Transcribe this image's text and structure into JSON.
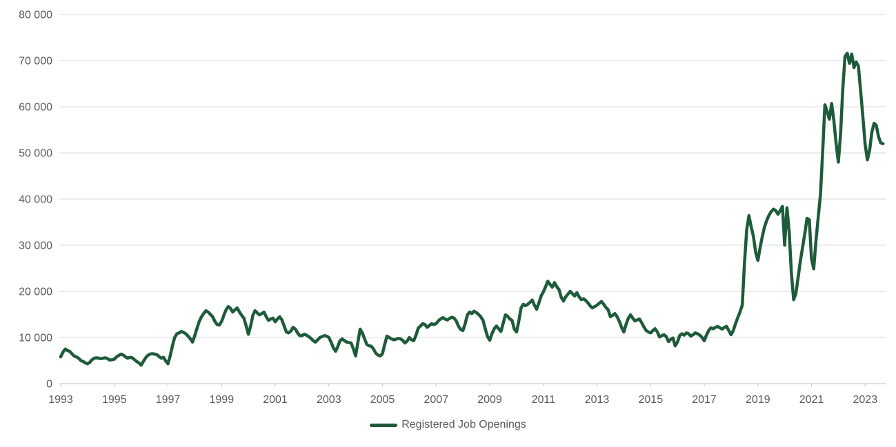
{
  "page": {
    "background": "#ffffff"
  },
  "chart_data": {
    "type": "line",
    "title": "",
    "xlabel": "",
    "ylabel": "",
    "grid": "horizontal-only",
    "legend_position": "bottom-center",
    "ylim": [
      0,
      80000
    ],
    "x_ticks": [
      1993,
      1995,
      1997,
      1999,
      2001,
      2003,
      2005,
      2007,
      2009,
      2011,
      2013,
      2015,
      2017,
      2019,
      2021,
      2023
    ],
    "y_ticks": [
      {
        "value": 0,
        "label": "0"
      },
      {
        "value": 10000,
        "label": "10 000"
      },
      {
        "value": 20000,
        "label": "20 000"
      },
      {
        "value": 30000,
        "label": "30 000"
      },
      {
        "value": 40000,
        "label": "40 000"
      },
      {
        "value": 50000,
        "label": "50 000"
      },
      {
        "value": 60000,
        "label": "60 000"
      },
      {
        "value": 70000,
        "label": "70 000"
      },
      {
        "value": 80000,
        "label": "80 000"
      }
    ],
    "colors": {
      "line": "#1e5b3a",
      "gridline": "#d9d9d9",
      "axis": "#c0c0c0",
      "text": "#595959"
    },
    "frequency": "monthly",
    "series": [
      {
        "name": "Registered Job Openings",
        "color": "#1e5b3a",
        "start": "1993-01",
        "end": "2023-09",
        "values": [
          5800,
          6800,
          7500,
          7200,
          7000,
          6500,
          6000,
          5800,
          5500,
          5000,
          4800,
          4500,
          4300,
          4600,
          5200,
          5500,
          5600,
          5500,
          5400,
          5500,
          5600,
          5400,
          5100,
          5200,
          5300,
          5800,
          6100,
          6400,
          6200,
          5800,
          5500,
          5700,
          5600,
          5200,
          4800,
          4500,
          4000,
          4800,
          5600,
          6100,
          6400,
          6500,
          6400,
          6300,
          5900,
          5500,
          5700,
          4900,
          4300,
          6000,
          8200,
          10000,
          10800,
          11000,
          11300,
          11100,
          10800,
          10300,
          9700,
          9000,
          10400,
          12000,
          13500,
          14500,
          15200,
          15800,
          15500,
          15000,
          14500,
          13500,
          12800,
          12700,
          13500,
          14800,
          16000,
          16700,
          16300,
          15500,
          16000,
          16400,
          15500,
          14800,
          14200,
          12500,
          10700,
          12500,
          14800,
          15800,
          15300,
          14900,
          15200,
          15500,
          14500,
          13700,
          14000,
          14200,
          13400,
          14000,
          14500,
          13800,
          12500,
          11200,
          11000,
          11400,
          12200,
          11800,
          11000,
          10400,
          10400,
          10700,
          10500,
          10200,
          9800,
          9300,
          9000,
          9500,
          10000,
          10200,
          10400,
          10300,
          10000,
          9000,
          7800,
          7000,
          8000,
          9300,
          9700,
          9300,
          9000,
          8900,
          8800,
          7500,
          6000,
          9000,
          11800,
          11000,
          9700,
          8500,
          8200,
          8100,
          7500,
          6600,
          6200,
          6000,
          6500,
          8500,
          10300,
          10000,
          9700,
          9500,
          9600,
          9800,
          9700,
          9400,
          8800,
          9200,
          10000,
          9500,
          9300,
          10500,
          12000,
          12500,
          13000,
          12800,
          12200,
          12600,
          13000,
          12800,
          13000,
          13600,
          14000,
          14300,
          14000,
          13800,
          14100,
          14400,
          14200,
          13600,
          12500,
          11700,
          11500,
          13000,
          14900,
          15500,
          15200,
          15700,
          15400,
          15000,
          14500,
          13700,
          11900,
          10200,
          9400,
          10800,
          11900,
          12500,
          11900,
          11300,
          13000,
          14900,
          14600,
          14000,
          13700,
          11800,
          11200,
          13500,
          16400,
          17200,
          16900,
          17200,
          17600,
          18100,
          17000,
          16100,
          17500,
          19000,
          19900,
          21000,
          22200,
          21500,
          20900,
          21900,
          21000,
          20400,
          18700,
          17900,
          18800,
          19400,
          20000,
          19500,
          19000,
          19700,
          18800,
          18200,
          18400,
          18000,
          17500,
          16800,
          16400,
          16700,
          17000,
          17400,
          17800,
          17200,
          16500,
          16000,
          14500,
          14800,
          15200,
          14500,
          13500,
          12200,
          11200,
          12800,
          14200,
          14900,
          14200,
          13600,
          13800,
          14000,
          13200,
          12300,
          11500,
          11200,
          11000,
          11500,
          11900,
          11200,
          10100,
          10400,
          10600,
          10200,
          9100,
          9600,
          9900,
          8200,
          9000,
          10400,
          10800,
          10500,
          11000,
          10800,
          10300,
          10600,
          11000,
          10800,
          10500,
          10000,
          9300,
          10500,
          11500,
          12100,
          11900,
          12200,
          12400,
          12100,
          11800,
          12200,
          12400,
          11500,
          10600,
          11500,
          13000,
          14300,
          15500,
          17000,
          26000,
          33400,
          36400,
          34000,
          31900,
          28500,
          26700,
          29500,
          31900,
          34000,
          35400,
          36500,
          37300,
          37800,
          37500,
          36700,
          37500,
          38400,
          30000,
          38100,
          33000,
          24000,
          18200,
          19500,
          23000,
          26500,
          29500,
          32500,
          35800,
          35500,
          27000,
          24900,
          31000,
          36000,
          41000,
          50300,
          60400,
          59000,
          57300,
          60700,
          57000,
          52200,
          48000,
          54000,
          64000,
          70900,
          71600,
          69400,
          71400,
          68500,
          69700,
          68800,
          63300,
          57800,
          51800,
          48500,
          50500,
          54500,
          56400,
          56000,
          53500,
          52200,
          52000
        ]
      }
    ]
  }
}
